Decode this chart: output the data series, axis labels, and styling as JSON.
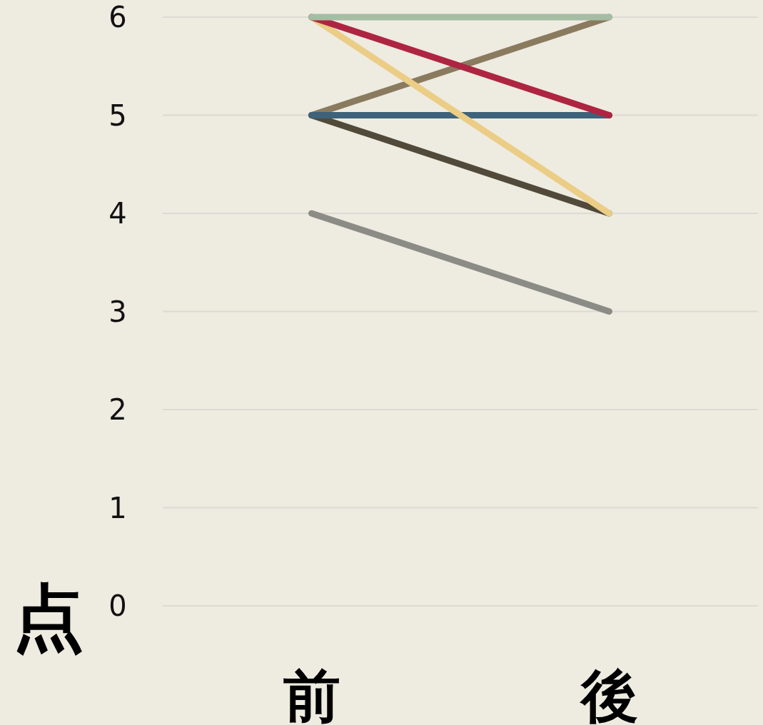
{
  "chart_data": {
    "type": "line",
    "ylabel": "点",
    "categories": [
      "前",
      "後"
    ],
    "series": [
      {
        "color": "#8b8c85",
        "values": [
          4,
          3
        ]
      },
      {
        "color": "#514a3a",
        "values": [
          5,
          4
        ]
      },
      {
        "color": "#8a7b5f",
        "values": [
          5,
          6
        ]
      },
      {
        "color": "#3d6279",
        "values": [
          5,
          5
        ]
      },
      {
        "color": "#ebcd86",
        "values": [
          6,
          4
        ]
      },
      {
        "color": "#ae2541",
        "values": [
          6,
          5
        ]
      },
      {
        "color": "#a5bda2",
        "values": [
          6,
          6
        ]
      }
    ],
    "ylim": [
      0,
      6
    ],
    "yticks": [
      0,
      1,
      2,
      3,
      4,
      5,
      6
    ],
    "grid": "y"
  }
}
